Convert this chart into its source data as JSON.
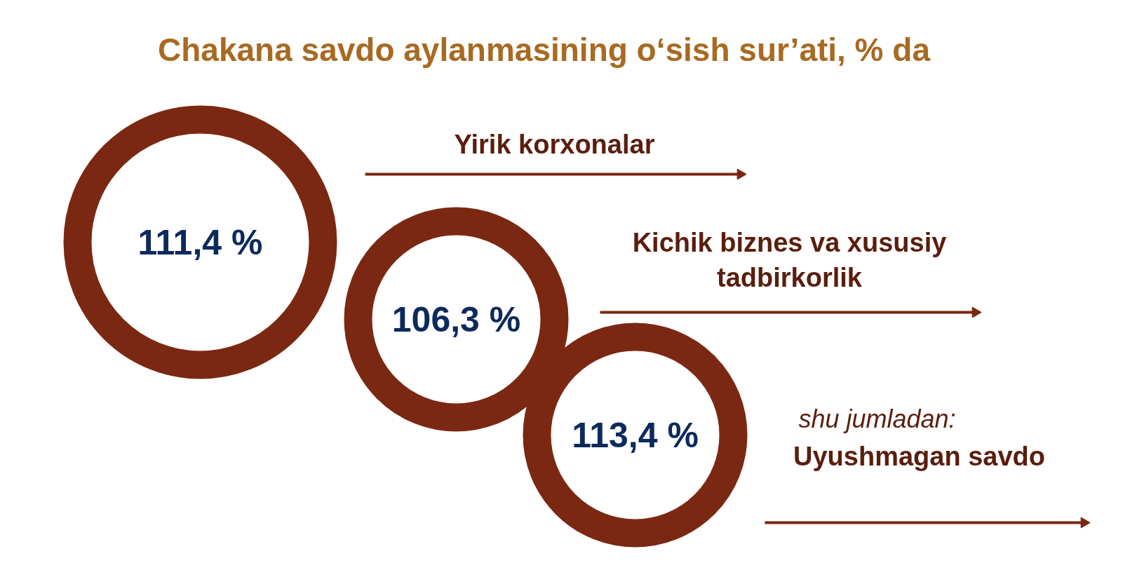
{
  "chart_data": {
    "type": "other",
    "title": "Chakana savdo aylanmasining o‘sish sur’ati, % da",
    "categories": [
      "Yirik korxonalar",
      "Kichik biznes va xususiy tadbirkorlik",
      "Uyushmagan savdo"
    ],
    "values": [
      111.4,
      106.3,
      113.4
    ],
    "value_labels": [
      "111,4 %",
      "106,3 %",
      "113,4 %"
    ],
    "color": "#7b2812",
    "annotations": [
      "shu jumladan:"
    ]
  }
}
